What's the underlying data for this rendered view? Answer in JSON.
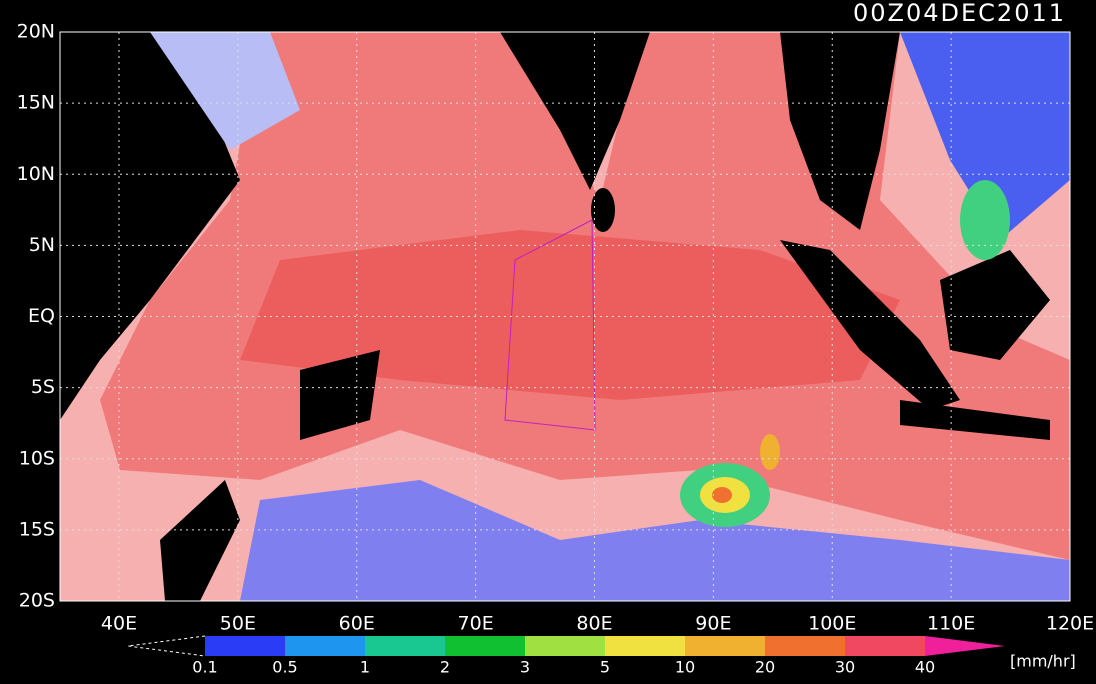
{
  "header": {
    "title": "00Z04DEC2011"
  },
  "map": {
    "lat_labels": [
      "20N",
      "15N",
      "10N",
      "5N",
      "EQ",
      "5S",
      "10S",
      "15S",
      "20S"
    ],
    "lon_labels": [
      "40E",
      "50E",
      "60E",
      "70E",
      "80E",
      "90E",
      "100E",
      "110E",
      "120E"
    ]
  },
  "colorbar": {
    "levels": [
      0.1,
      0.5,
      1,
      2,
      3,
      5,
      10,
      20,
      30,
      40
    ],
    "colors": [
      "#2a3cf5",
      "#1e96f0",
      "#18c890",
      "#10c030",
      "#a0e040",
      "#f0e040",
      "#f0b030",
      "#f07030",
      "#f04860"
    ],
    "over_color": "#f0209a",
    "units": "[mm/hr]"
  }
}
